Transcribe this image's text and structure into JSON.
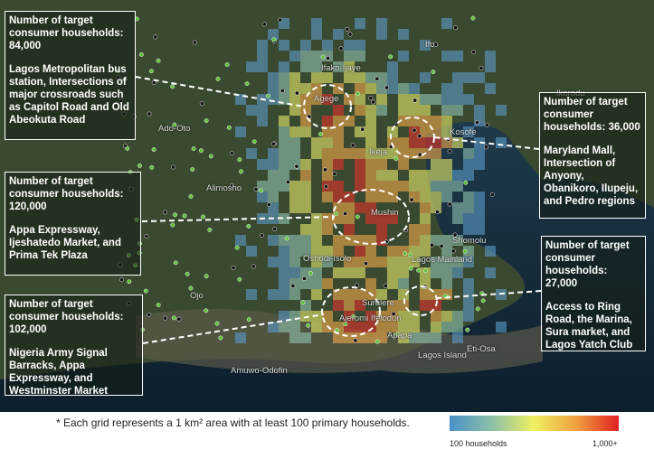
{
  "callouts": [
    {
      "heading": "Number of target consumer households:",
      "value": "84,000",
      "detail": "Lagos Metropolitan bus station, Intersections of major crossroads such as Capitol Road and Old Abeokuta Road"
    },
    {
      "heading": "Number of target consumer households:",
      "value": "120,000",
      "detail": "Appa Expressway, Ijeshatedo Market, and Prima Tek Plaza"
    },
    {
      "heading": "Number of target consumer households:",
      "value": "102,000",
      "detail": "Nigeria Army Signal Barracks, Appa Expressway, and Westminster Market"
    },
    {
      "heading": "Number of target consumer households:",
      "value": "36,000",
      "detail": "Maryland Mall, Intersection of Anyony, Obanikoro, Ilupeju, and Pedro regions"
    },
    {
      "heading": "Number of target consumer households:",
      "value": "27,000",
      "detail": "Access to Ring Road, the Marina, Sura market, and Lagos Yatch Club"
    }
  ],
  "places": [
    "Ifo",
    "Ifako-Ijaye",
    "Agege",
    "Ikorodu",
    "Ado-Oto",
    "Kosofe",
    "Ikeja",
    "Alimosho",
    "Mushin",
    "Shomolu",
    "Oshodi-Isolo",
    "Lagos Mainland",
    "Surulere",
    "Ojo",
    "Ajeromi Ifelodun",
    "Apapa",
    "Lagos Island",
    "Eti-Osa",
    "Amuwo-Odofin"
  ],
  "footnote": "* Each grid represents a 1 km² area with at least 100 primary households.",
  "legend": {
    "low": "100 households",
    "high": "1,000+"
  }
}
